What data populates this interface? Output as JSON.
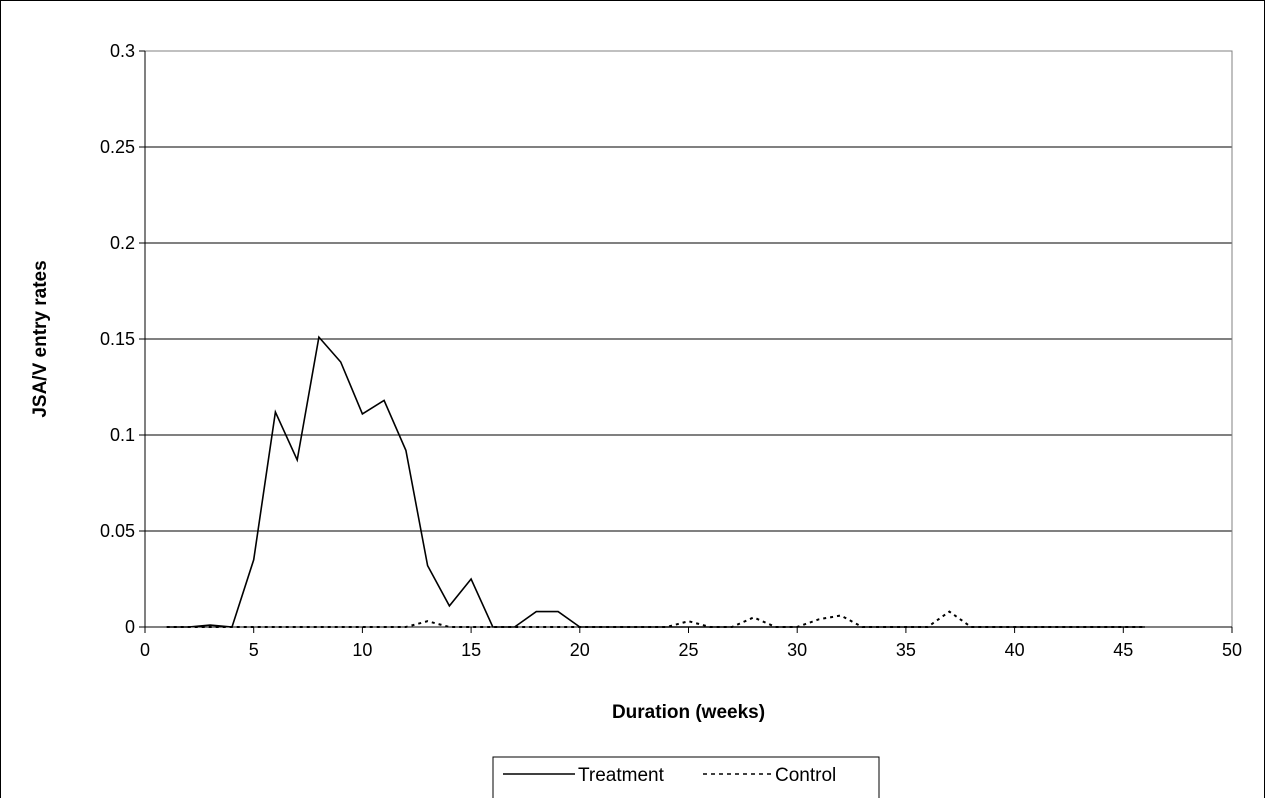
{
  "chart_data": {
    "type": "line",
    "title": "",
    "xlabel": "Duration (weeks)",
    "ylabel": "JSA/V entry rates",
    "xlim": [
      0,
      50
    ],
    "ylim": [
      0,
      0.3
    ],
    "x_ticks": [
      0,
      5,
      10,
      15,
      20,
      25,
      30,
      35,
      40,
      45,
      50
    ],
    "x_tick_labels": [
      "0",
      "5",
      "10",
      "15",
      "20",
      "25",
      "30",
      "35",
      "40",
      "45",
      "50"
    ],
    "y_ticks": [
      0,
      0.05,
      0.1,
      0.15,
      0.2,
      0.25,
      0.3
    ],
    "y_tick_labels": [
      "0",
      "0.05",
      "0.1",
      "0.15",
      "0.2",
      "0.25",
      "0.3"
    ],
    "grid": "horizontal",
    "legend_position": "bottom",
    "series": [
      {
        "name": "Treatment",
        "style": "solid",
        "color": "#000000",
        "x": [
          1,
          2,
          3,
          4,
          5,
          6,
          7,
          8,
          9,
          10,
          11,
          12,
          13,
          14,
          15,
          16,
          17,
          18,
          19,
          20,
          21,
          22,
          23,
          24,
          25,
          26,
          27,
          28,
          29,
          30,
          31,
          32,
          33,
          34,
          35,
          36,
          37,
          38,
          39,
          40,
          41,
          42,
          43,
          44,
          45,
          46
        ],
        "values": [
          0,
          0,
          0.001,
          0,
          0.035,
          0.112,
          0.087,
          0.151,
          0.138,
          0.111,
          0.118,
          0.092,
          0.032,
          0.011,
          0.025,
          0,
          0,
          0.008,
          0.008,
          0,
          0,
          0,
          0,
          0,
          0,
          0,
          0,
          0,
          0,
          0,
          0,
          0,
          0,
          0,
          0,
          0,
          0,
          0,
          0,
          0,
          0,
          0,
          0,
          0,
          0,
          0
        ]
      },
      {
        "name": "Control",
        "style": "dotted",
        "color": "#000000",
        "x": [
          1,
          2,
          3,
          4,
          5,
          6,
          7,
          8,
          9,
          10,
          11,
          12,
          13,
          14,
          15,
          16,
          17,
          18,
          19,
          20,
          21,
          22,
          23,
          24,
          25,
          26,
          27,
          28,
          29,
          30,
          31,
          32,
          33,
          34,
          35,
          36,
          37,
          38,
          39,
          40,
          41,
          42,
          43,
          44,
          45,
          46
        ],
        "values": [
          0,
          0,
          0,
          0,
          0,
          0,
          0,
          0,
          0,
          0,
          0,
          0,
          0.003,
          0,
          0,
          0,
          0,
          0,
          0,
          0,
          0,
          0,
          0,
          0,
          0.003,
          0,
          0,
          0.005,
          0,
          0,
          0.004,
          0.006,
          0,
          0,
          0,
          0,
          0.008,
          0,
          0,
          0,
          0,
          0,
          0,
          0,
          0,
          0
        ]
      }
    ]
  }
}
